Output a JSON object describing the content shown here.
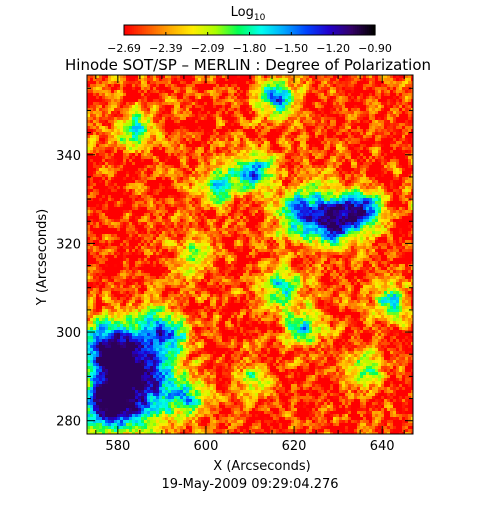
{
  "chart_data": {
    "type": "heatmap",
    "title": "Hinode SOT/SP – MERLIN : Degree of Polarization",
    "timestamp": "19-May-2009 09:29:04.276",
    "xlabel": "X (Arcseconds)",
    "ylabel": "Y (Arcseconds)",
    "xlim": [
      573,
      647
    ],
    "ylim": [
      277,
      358
    ],
    "x_ticks": [
      580,
      600,
      620,
      640
    ],
    "y_ticks": [
      280,
      300,
      320,
      340
    ],
    "colorbar": {
      "label_base": "Log",
      "label_sub": "10",
      "range": [
        -2.69,
        -0.9
      ],
      "ticks": [
        "-2.69",
        "-2.39",
        "-2.09",
        "-1.80",
        "-1.50",
        "-1.20",
        "-0.90"
      ],
      "colormap": [
        "#ff0000",
        "#ff5500",
        "#ffaa00",
        "#ffee00",
        "#aaff00",
        "#00ff55",
        "#00ffee",
        "#00aaff",
        "#0044ff",
        "#2200cc",
        "#330066",
        "#000000"
      ]
    },
    "features": [
      {
        "x": 584,
        "y": 288,
        "strength": 1.0,
        "spread": 6
      },
      {
        "x": 578,
        "y": 296,
        "strength": 0.85,
        "spread": 5
      },
      {
        "x": 590,
        "y": 300,
        "strength": 0.7,
        "spread": 4
      },
      {
        "x": 577,
        "y": 283,
        "strength": 0.75,
        "spread": 4
      },
      {
        "x": 630,
        "y": 325,
        "strength": 0.9,
        "spread": 4
      },
      {
        "x": 622,
        "y": 327,
        "strength": 0.75,
        "spread": 4
      },
      {
        "x": 636,
        "y": 328,
        "strength": 0.7,
        "spread": 3
      },
      {
        "x": 611,
        "y": 336,
        "strength": 0.75,
        "spread": 3
      },
      {
        "x": 603,
        "y": 333,
        "strength": 0.6,
        "spread": 3
      },
      {
        "x": 616,
        "y": 353,
        "strength": 0.8,
        "spread": 3
      },
      {
        "x": 584,
        "y": 346,
        "strength": 0.55,
        "spread": 3
      },
      {
        "x": 617,
        "y": 310,
        "strength": 0.6,
        "spread": 3
      },
      {
        "x": 622,
        "y": 301,
        "strength": 0.6,
        "spread": 3
      },
      {
        "x": 642,
        "y": 307,
        "strength": 0.55,
        "spread": 3
      },
      {
        "x": 636,
        "y": 292,
        "strength": 0.45,
        "spread": 3
      },
      {
        "x": 597,
        "y": 317,
        "strength": 0.45,
        "spread": 3
      },
      {
        "x": 596,
        "y": 285,
        "strength": 0.5,
        "spread": 3
      },
      {
        "x": 611,
        "y": 289,
        "strength": 0.4,
        "spread": 3
      }
    ]
  }
}
